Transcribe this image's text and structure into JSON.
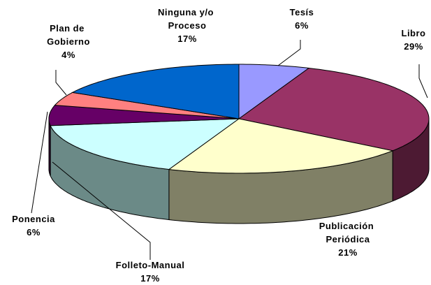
{
  "chart_data": {
    "type": "pie3d",
    "categories": [
      "Tesís",
      "Libro",
      "Publicación Periódica",
      "Folleto-Manual",
      "Ponencia",
      "Plan de Gobierno",
      "Ninguna y/o Proceso"
    ],
    "values": [
      6,
      29,
      21,
      17,
      6,
      4,
      17
    ],
    "value_labels": [
      "6%",
      "29%",
      "21%",
      "17%",
      "6%",
      "4%",
      "17%"
    ],
    "colors": [
      "#9999ff",
      "#993366",
      "#ffffcc",
      "#ccffff",
      "#660066",
      "#ff8080",
      "#0066cc"
    ],
    "side_colors": [
      "#5c5c99",
      "#4d1a33",
      "#808066",
      "#6b8a87",
      "#330033",
      "#994d4d",
      "#003d7a"
    ]
  }
}
